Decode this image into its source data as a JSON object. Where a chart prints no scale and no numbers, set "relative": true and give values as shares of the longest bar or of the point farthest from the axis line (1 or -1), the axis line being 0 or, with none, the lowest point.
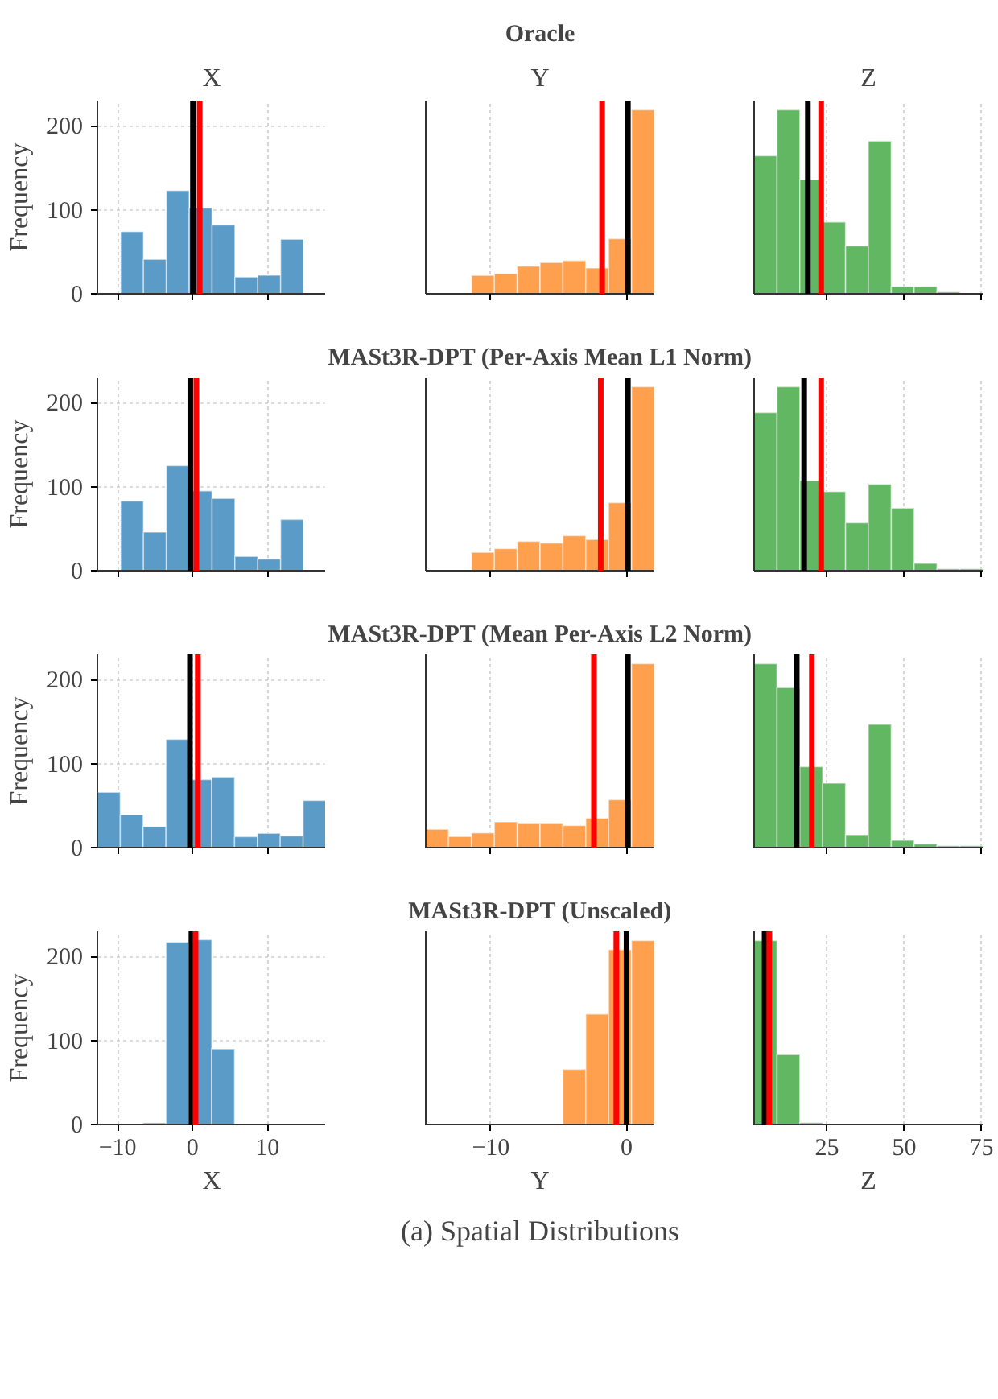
{
  "chart_data": [
    {
      "type": "histogram",
      "subtitle": "X",
      "ylabel": "Frequency",
      "bins": [
        -9.6,
        -6.55,
        -3.5,
        -0.45,
        2.6,
        5.65,
        8.7,
        11.75,
        14.8
      ],
      "values": [
        74,
        41,
        123,
        102,
        82,
        20,
        22,
        65
      ],
      "color": "#5a9bc8",
      "xlim": [
        -12.7,
        17.8
      ],
      "xticks": [
        {
          "value": -10,
          "label": null
        },
        {
          "value": 0,
          "label": null
        },
        {
          "value": 10,
          "label": null
        }
      ],
      "ylim": [
        0,
        230
      ],
      "yticks": [
        0,
        100,
        200
      ],
      "grid": true,
      "tick_labels": "y",
      "ref_lines": [
        {
          "axis": "x",
          "value": 0.05,
          "color": "#000000"
        },
        {
          "axis": "x",
          "value": 0.95,
          "color": "#ff0000"
        }
      ]
    },
    {
      "type": "bar",
      "title": "Oracle",
      "subtitle": "Y",
      "x": [
        -10.59,
        -8.9,
        -7.22,
        -5.53,
        -3.85,
        -2.16,
        -0.48,
        1.21
      ],
      "values": [
        0.1,
        0.11,
        0.15,
        0.17,
        0.18,
        0.14,
        0.3,
        1
      ],
      "relative": true,
      "color": "#ffa04f",
      "xlim": [
        -14.8,
        2.05
      ],
      "xticks": [
        {
          "value": -10,
          "label": null
        },
        {
          "value": 0,
          "label": null
        }
      ],
      "grid": "x",
      "tick_labels": false,
      "ref_lines": [
        {
          "axis": "x",
          "value": -1.8,
          "color": "#ff0000"
        },
        {
          "axis": "x",
          "value": 0.1,
          "color": "#000000"
        }
      ]
    },
    {
      "type": "bar",
      "subtitle": "Z",
      "x": [
        5.1,
        12.5,
        19.9,
        27.3,
        34.7,
        42.1,
        49.5,
        56.9,
        64.3
      ],
      "values": [
        0.75,
        1,
        0.62,
        0.39,
        0.26,
        0.83,
        0.04,
        0.04,
        0.01
      ],
      "relative": true,
      "color": "#62b862",
      "xlim": [
        1.4,
        75.4
      ],
      "xticks": [
        {
          "value": 25,
          "label": null
        },
        {
          "value": 50,
          "label": null
        },
        {
          "value": 75,
          "label": null
        }
      ],
      "grid": "x",
      "tick_labels": false,
      "ref_lines": [
        {
          "axis": "x",
          "value": 18.8,
          "color": "#000000"
        },
        {
          "axis": "x",
          "value": 23.1,
          "color": "#ff0000"
        }
      ]
    },
    {
      "type": "histogram",
      "ylabel": "Frequency",
      "bins": [
        -9.6,
        -6.55,
        -3.5,
        -0.45,
        2.6,
        5.65,
        8.7,
        11.75,
        14.8
      ],
      "values": [
        83,
        46,
        125,
        95,
        86,
        17,
        14,
        61
      ],
      "color": "#5a9bc8",
      "xlim": [
        -12.7,
        17.8
      ],
      "xticks": [
        {
          "value": -10,
          "label": null
        },
        {
          "value": 0,
          "label": null
        },
        {
          "value": 10,
          "label": null
        }
      ],
      "ylim": [
        0,
        230
      ],
      "yticks": [
        0,
        100,
        200
      ],
      "grid": true,
      "tick_labels": "y",
      "ref_lines": [
        {
          "axis": "x",
          "value": -0.3,
          "color": "#000000"
        },
        {
          "axis": "x",
          "value": 0.5,
          "color": "#ff0000"
        }
      ]
    },
    {
      "type": "bar",
      "title": "MASt3R-DPT (Per-Axis Mean L1 Norm)",
      "x": [
        -10.59,
        -8.9,
        -7.22,
        -5.53,
        -3.85,
        -2.16,
        -0.48,
        1.21
      ],
      "values": [
        0.1,
        0.12,
        0.16,
        0.15,
        0.19,
        0.17,
        0.37,
        1
      ],
      "relative": true,
      "color": "#ffa04f",
      "xlim": [
        -14.8,
        2.05
      ],
      "xticks": [
        {
          "value": -10,
          "label": null
        },
        {
          "value": 0,
          "label": null
        }
      ],
      "grid": "x",
      "tick_labels": false,
      "ref_lines": [
        {
          "axis": "x",
          "value": -1.9,
          "color": "#ff0000"
        },
        {
          "axis": "x",
          "value": 0.1,
          "color": "#000000"
        }
      ]
    },
    {
      "type": "bar",
      "x": [
        5.1,
        12.5,
        19.9,
        27.3,
        34.7,
        42.1,
        49.5,
        56.9,
        64.3,
        71.7
      ],
      "values": [
        0.86,
        1,
        0.49,
        0.43,
        0.26,
        0.47,
        0.34,
        0.04,
        0.01,
        0.01
      ],
      "relative": true,
      "color": "#62b862",
      "xlim": [
        1.4,
        75.4
      ],
      "xticks": [
        {
          "value": 25,
          "label": null
        },
        {
          "value": 50,
          "label": null
        },
        {
          "value": 75,
          "label": null
        }
      ],
      "grid": "x",
      "tick_labels": false,
      "ref_lines": [
        {
          "axis": "x",
          "value": 17.6,
          "color": "#000000"
        },
        {
          "axis": "x",
          "value": 23.1,
          "color": "#ff0000"
        }
      ]
    },
    {
      "type": "histogram",
      "ylabel": "Frequency",
      "bins": [
        -12.7,
        -9.65,
        -6.6,
        -3.55,
        -0.5,
        2.55,
        5.6,
        8.65,
        11.7,
        14.75,
        17.8
      ],
      "values": [
        66,
        39,
        25,
        129,
        81,
        84,
        13,
        17,
        14,
        56
      ],
      "color": "#5a9bc8",
      "xlim": [
        -12.7,
        17.8
      ],
      "xticks": [
        {
          "value": -10,
          "label": null
        },
        {
          "value": 0,
          "label": null
        },
        {
          "value": 10,
          "label": null
        }
      ],
      "ylim": [
        0,
        230
      ],
      "yticks": [
        0,
        100,
        200
      ],
      "grid": true,
      "tick_labels": "y",
      "ref_lines": [
        {
          "axis": "x",
          "value": -0.35,
          "color": "#000000"
        },
        {
          "axis": "x",
          "value": 0.7,
          "color": "#ff0000"
        }
      ]
    },
    {
      "type": "bar",
      "title": "MASt3R-DPT (Mean Per-Axis L2 Norm)",
      "x": [
        -13.96,
        -12.28,
        -10.59,
        -8.9,
        -7.22,
        -5.53,
        -3.85,
        -2.16,
        -0.48,
        1.21
      ],
      "values": [
        0.1,
        0.06,
        0.08,
        0.14,
        0.13,
        0.13,
        0.12,
        0.16,
        0.26,
        1
      ],
      "relative": true,
      "color": "#ffa04f",
      "xlim": [
        -14.8,
        2.05
      ],
      "xticks": [
        {
          "value": -10,
          "label": null
        },
        {
          "value": 0,
          "label": null
        }
      ],
      "grid": "x",
      "tick_labels": false,
      "ref_lines": [
        {
          "axis": "x",
          "value": -2.4,
          "color": "#ff0000"
        },
        {
          "axis": "x",
          "value": 0.1,
          "color": "#000000"
        }
      ]
    },
    {
      "type": "bar",
      "x": [
        5.1,
        12.5,
        19.9,
        27.3,
        34.7,
        42.1,
        49.5,
        56.9,
        64.3,
        71.7
      ],
      "values": [
        1,
        0.87,
        0.44,
        0.35,
        0.07,
        0.67,
        0.04,
        0.02,
        0.01,
        0.01
      ],
      "relative": true,
      "color": "#62b862",
      "xlim": [
        1.4,
        75.4
      ],
      "xticks": [
        {
          "value": 25,
          "label": null
        },
        {
          "value": 50,
          "label": null
        },
        {
          "value": 75,
          "label": null
        }
      ],
      "grid": "x",
      "tick_labels": false,
      "ref_lines": [
        {
          "axis": "x",
          "value": 15.2,
          "color": "#000000"
        },
        {
          "axis": "x",
          "value": 20.1,
          "color": "#ff0000"
        }
      ]
    },
    {
      "type": "histogram",
      "xlabel": "X",
      "ylabel": "Frequency",
      "bins": [
        -6.6,
        -3.55,
        -0.5,
        2.55,
        5.6
      ],
      "values": [
        2,
        217,
        220,
        90
      ],
      "color": "#5a9bc8",
      "xlim": [
        -12.7,
        17.8
      ],
      "xticks": [
        {
          "value": -10,
          "label": "−10"
        },
        0,
        10
      ],
      "ylim": [
        0,
        230
      ],
      "yticks": [
        0,
        100,
        200
      ],
      "grid": true,
      "ref_lines": [
        {
          "axis": "x",
          "value": -0.15,
          "color": "#000000"
        },
        {
          "axis": "x",
          "value": 0.4,
          "color": "#ff0000"
        }
      ]
    },
    {
      "type": "bar",
      "title": "MASt3R-DPT (Unscaled)",
      "xlabel": "Y",
      "x": [
        -3.85,
        -2.16,
        -0.48,
        1.21
      ],
      "values": [
        0.3,
        0.6,
        0.95,
        1
      ],
      "relative": true,
      "color": "#ffa04f",
      "xlim": [
        -14.8,
        2.05
      ],
      "xticks": [
        {
          "value": -10,
          "label": "−10"
        },
        0
      ],
      "grid": "x",
      "tick_labels": "x",
      "ref_lines": [
        {
          "axis": "x",
          "value": -0.75,
          "color": "#ff0000"
        },
        {
          "axis": "x",
          "value": 0.0,
          "color": "#000000"
        }
      ],
      "annotations": [
        "(a) Spatial Distributions"
      ]
    },
    {
      "type": "bar",
      "xlabel": "Z",
      "x": [
        5.1,
        12.5,
        19.9
      ],
      "values": [
        1,
        0.38,
        0.01
      ],
      "relative": true,
      "color": "#62b862",
      "xlim": [
        1.4,
        75.4
      ],
      "xticks": [
        25,
        50,
        75
      ],
      "grid": "x",
      "tick_labels": "x",
      "ref_lines": [
        {
          "axis": "x",
          "value": 4.8,
          "color": "#000000"
        },
        {
          "axis": "x",
          "value": 6.3,
          "color": "#ff0000"
        }
      ]
    }
  ]
}
